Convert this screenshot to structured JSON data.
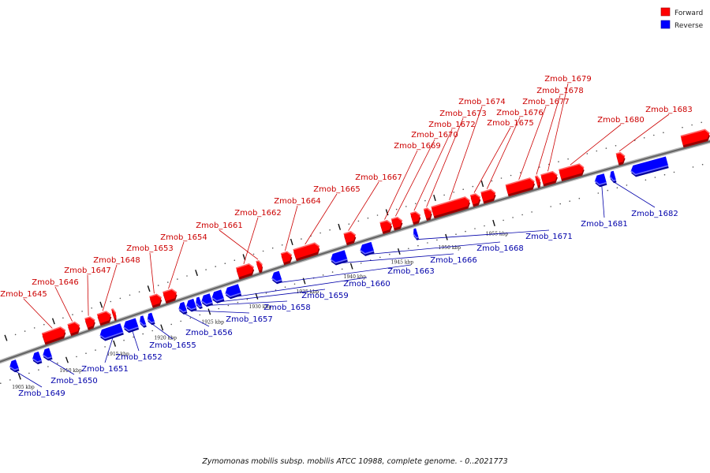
{
  "legend": {
    "forward_label": "Forward",
    "reverse_label": "Reverse",
    "forward_color": "#ff0000",
    "reverse_color": "#0000ff"
  },
  "caption": "Zymomonas mobilis subsp. mobilis ATCC 10988, complete genome. - 0..2021773",
  "colors": {
    "forward_label": "#cc0000",
    "reverse_label": "#0000aa",
    "backbone": "#666666"
  },
  "ticks": [
    {
      "kbp": 1905,
      "label": "1905 kbp"
    },
    {
      "kbp": 1910,
      "label": "1910 kbp"
    },
    {
      "kbp": 1915,
      "label": "1915 kbp"
    },
    {
      "kbp": 1920,
      "label": "1920 kbp"
    },
    {
      "kbp": 1925,
      "label": "1925 kbp"
    },
    {
      "kbp": 1930,
      "label": "1930 kbp"
    },
    {
      "kbp": 1935,
      "label": "1935 kbp"
    },
    {
      "kbp": 1940,
      "label": "1940 kbp"
    },
    {
      "kbp": 1945,
      "label": "1945 kbp"
    },
    {
      "kbp": 1950,
      "label": "1950 kbp"
    },
    {
      "kbp": 1955,
      "label": "1955 kbp"
    }
  ],
  "genes": [
    {
      "name": "Zmob_1649",
      "strand": "reverse",
      "start": 1904.4,
      "end": 1905.2
    },
    {
      "name": "",
      "strand": "reverse",
      "start": 1906.8,
      "end": 1907.6
    },
    {
      "name": "Zmob_1650",
      "strand": "reverse",
      "start": 1907.9,
      "end": 1908.7
    },
    {
      "name": "Zmob_1645",
      "strand": "forward",
      "start": 1908.5,
      "end": 1910.8
    },
    {
      "name": "Zmob_1646",
      "strand": "forward",
      "start": 1911.2,
      "end": 1912.3
    },
    {
      "name": "Zmob_1647",
      "strand": "forward",
      "start": 1913.0,
      "end": 1913.9
    },
    {
      "name": "Zmob_1648",
      "strand": "forward",
      "start": 1914.3,
      "end": 1915.6
    },
    {
      "name": "",
      "strand": "forward",
      "start": 1915.8,
      "end": 1916.1
    },
    {
      "name": "Zmob_1651",
      "strand": "reverse",
      "start": 1913.9,
      "end": 1916.2
    },
    {
      "name": "Zmob_1652",
      "strand": "reverse",
      "start": 1916.4,
      "end": 1917.8
    },
    {
      "name": "",
      "strand": "reverse",
      "start": 1918.1,
      "end": 1918.6
    },
    {
      "name": "Zmob_1655",
      "strand": "reverse",
      "start": 1918.9,
      "end": 1919.5
    },
    {
      "name": "Zmob_1653",
      "strand": "forward",
      "start": 1919.8,
      "end": 1920.9
    },
    {
      "name": "Zmob_1654",
      "strand": "forward",
      "start": 1921.2,
      "end": 1922.5
    },
    {
      "name": "Zmob_1656",
      "strand": "reverse",
      "start": 1922.2,
      "end": 1922.9
    },
    {
      "name": "Zmob_1657",
      "strand": "reverse",
      "start": 1923.0,
      "end": 1923.9
    },
    {
      "name": "",
      "strand": "reverse",
      "start": 1924.0,
      "end": 1924.5
    },
    {
      "name": "Zmob_1658",
      "strand": "reverse",
      "start": 1924.6,
      "end": 1925.6
    },
    {
      "name": "Zmob_1659",
      "strand": "reverse",
      "start": 1925.7,
      "end": 1926.8
    },
    {
      "name": "Zmob_1660",
      "strand": "reverse",
      "start": 1927.1,
      "end": 1928.6
    },
    {
      "name": "Zmob_1662",
      "strand": "forward",
      "start": 1928.9,
      "end": 1930.6
    },
    {
      "name": "Zmob_1661",
      "strand": "forward",
      "start": 1931.0,
      "end": 1931.5
    },
    {
      "name": "Zmob_1663",
      "strand": "reverse",
      "start": 1932.0,
      "end": 1932.9
    },
    {
      "name": "Zmob_1664",
      "strand": "forward",
      "start": 1933.6,
      "end": 1934.6
    },
    {
      "name": "Zmob_1665",
      "strand": "forward",
      "start": 1934.9,
      "end": 1937.5
    },
    {
      "name": "Zmob_1666",
      "strand": "reverse",
      "start": 1938.2,
      "end": 1939.8
    },
    {
      "name": "Zmob_1667",
      "strand": "forward",
      "start": 1940.2,
      "end": 1941.3
    },
    {
      "name": "Zmob_1668",
      "strand": "reverse",
      "start": 1941.3,
      "end": 1942.6
    },
    {
      "name": "Zmob_1669",
      "strand": "forward",
      "start": 1944.0,
      "end": 1945.1
    },
    {
      "name": "Zmob_1670",
      "strand": "forward",
      "start": 1945.2,
      "end": 1946.2
    },
    {
      "name": "Zmob_1671",
      "strand": "reverse",
      "start": 1946.9,
      "end": 1947.3
    },
    {
      "name": "Zmob_1672",
      "strand": "forward",
      "start": 1947.2,
      "end": 1948.1
    },
    {
      "name": "Zmob_1673",
      "strand": "forward",
      "start": 1948.6,
      "end": 1949.3
    },
    {
      "name": "Zmob_1674",
      "strand": "forward",
      "start": 1949.4,
      "end": 1953.3
    },
    {
      "name": "Zmob_1675",
      "strand": "forward",
      "start": 1953.5,
      "end": 1954.4
    },
    {
      "name": "Zmob_1676",
      "strand": "forward",
      "start": 1954.6,
      "end": 1956.0
    },
    {
      "name": "Zmob_1677",
      "strand": "forward",
      "start": 1957.2,
      "end": 1960.1
    },
    {
      "name": "Zmob_1678",
      "strand": "forward",
      "start": 1960.3,
      "end": 1960.7
    },
    {
      "name": "Zmob_1679",
      "strand": "forward",
      "start": 1960.9,
      "end": 1962.5
    },
    {
      "name": "Zmob_1680",
      "strand": "forward",
      "start": 1962.8,
      "end": 1965.3
    },
    {
      "name": "Zmob_1681",
      "strand": "reverse",
      "start": 1966.0,
      "end": 1967.1
    },
    {
      "name": "Zmob_1682",
      "strand": "reverse",
      "start": 1967.6,
      "end": 1968.1
    },
    {
      "name": "Zmob_1683",
      "strand": "forward",
      "start": 1968.8,
      "end": 1969.6
    },
    {
      "name": "",
      "strand": "reverse",
      "start": 1969.8,
      "end": 1973.6
    },
    {
      "name": "",
      "strand": "forward",
      "start": 1975.6,
      "end": 1978.5
    }
  ],
  "labels": [
    {
      "gene": "Zmob_1645",
      "text": "Zmob_1645"
    },
    {
      "gene": "Zmob_1646",
      "text": "Zmob_1646"
    },
    {
      "gene": "Zmob_1647",
      "text": "Zmob_1647"
    },
    {
      "gene": "Zmob_1648",
      "text": "Zmob_1648"
    },
    {
      "gene": "Zmob_1653",
      "text": "Zmob_1653"
    },
    {
      "gene": "Zmob_1654",
      "text": "Zmob_1654"
    },
    {
      "gene": "Zmob_1661",
      "text": "Zmob_1661"
    },
    {
      "gene": "Zmob_1662",
      "text": "Zmob_1662"
    },
    {
      "gene": "Zmob_1664",
      "text": "Zmob_1664"
    },
    {
      "gene": "Zmob_1665",
      "text": "Zmob_1665"
    },
    {
      "gene": "Zmob_1667",
      "text": "Zmob_1667"
    },
    {
      "gene": "Zmob_1669",
      "text": "Zmob_1669"
    },
    {
      "gene": "Zmob_1670",
      "text": "Zmob_1670"
    },
    {
      "gene": "Zmob_1672",
      "text": "Zmob_1672"
    },
    {
      "gene": "Zmob_1673",
      "text": "Zmob_1673"
    },
    {
      "gene": "Zmob_1674",
      "text": "Zmob_1674"
    },
    {
      "gene": "Zmob_1675",
      "text": "Zmob_1675"
    },
    {
      "gene": "Zmob_1676",
      "text": "Zmob_1676"
    },
    {
      "gene": "Zmob_1677",
      "text": "Zmob_1677"
    },
    {
      "gene": "Zmob_1678",
      "text": "Zmob_1678"
    },
    {
      "gene": "Zmob_1679",
      "text": "Zmob_1679"
    },
    {
      "gene": "Zmob_1680",
      "text": "Zmob_1680"
    },
    {
      "gene": "Zmob_1683",
      "text": "Zmob_1683"
    },
    {
      "gene": "Zmob_1649",
      "text": "Zmob_1649"
    },
    {
      "gene": "Zmob_1650",
      "text": "Zmob_1650"
    },
    {
      "gene": "Zmob_1651",
      "text": "Zmob_1651"
    },
    {
      "gene": "Zmob_1652",
      "text": "Zmob_1652"
    },
    {
      "gene": "Zmob_1655",
      "text": "Zmob_1655"
    },
    {
      "gene": "Zmob_1656",
      "text": "Zmob_1656"
    },
    {
      "gene": "Zmob_1657",
      "text": "Zmob_1657"
    },
    {
      "gene": "Zmob_1658",
      "text": "Zmob_1658"
    },
    {
      "gene": "Zmob_1659",
      "text": "Zmob_1659"
    },
    {
      "gene": "Zmob_1660",
      "text": "Zmob_1660"
    },
    {
      "gene": "Zmob_1663",
      "text": "Zmob_1663"
    },
    {
      "gene": "Zmob_1666",
      "text": "Zmob_1666"
    },
    {
      "gene": "Zmob_1668",
      "text": "Zmob_1668"
    },
    {
      "gene": "Zmob_1671",
      "text": "Zmob_1671"
    },
    {
      "gene": "Zmob_1681",
      "text": "Zmob_1681"
    },
    {
      "gene": "Zmob_1682",
      "text": "Zmob_1682"
    }
  ]
}
